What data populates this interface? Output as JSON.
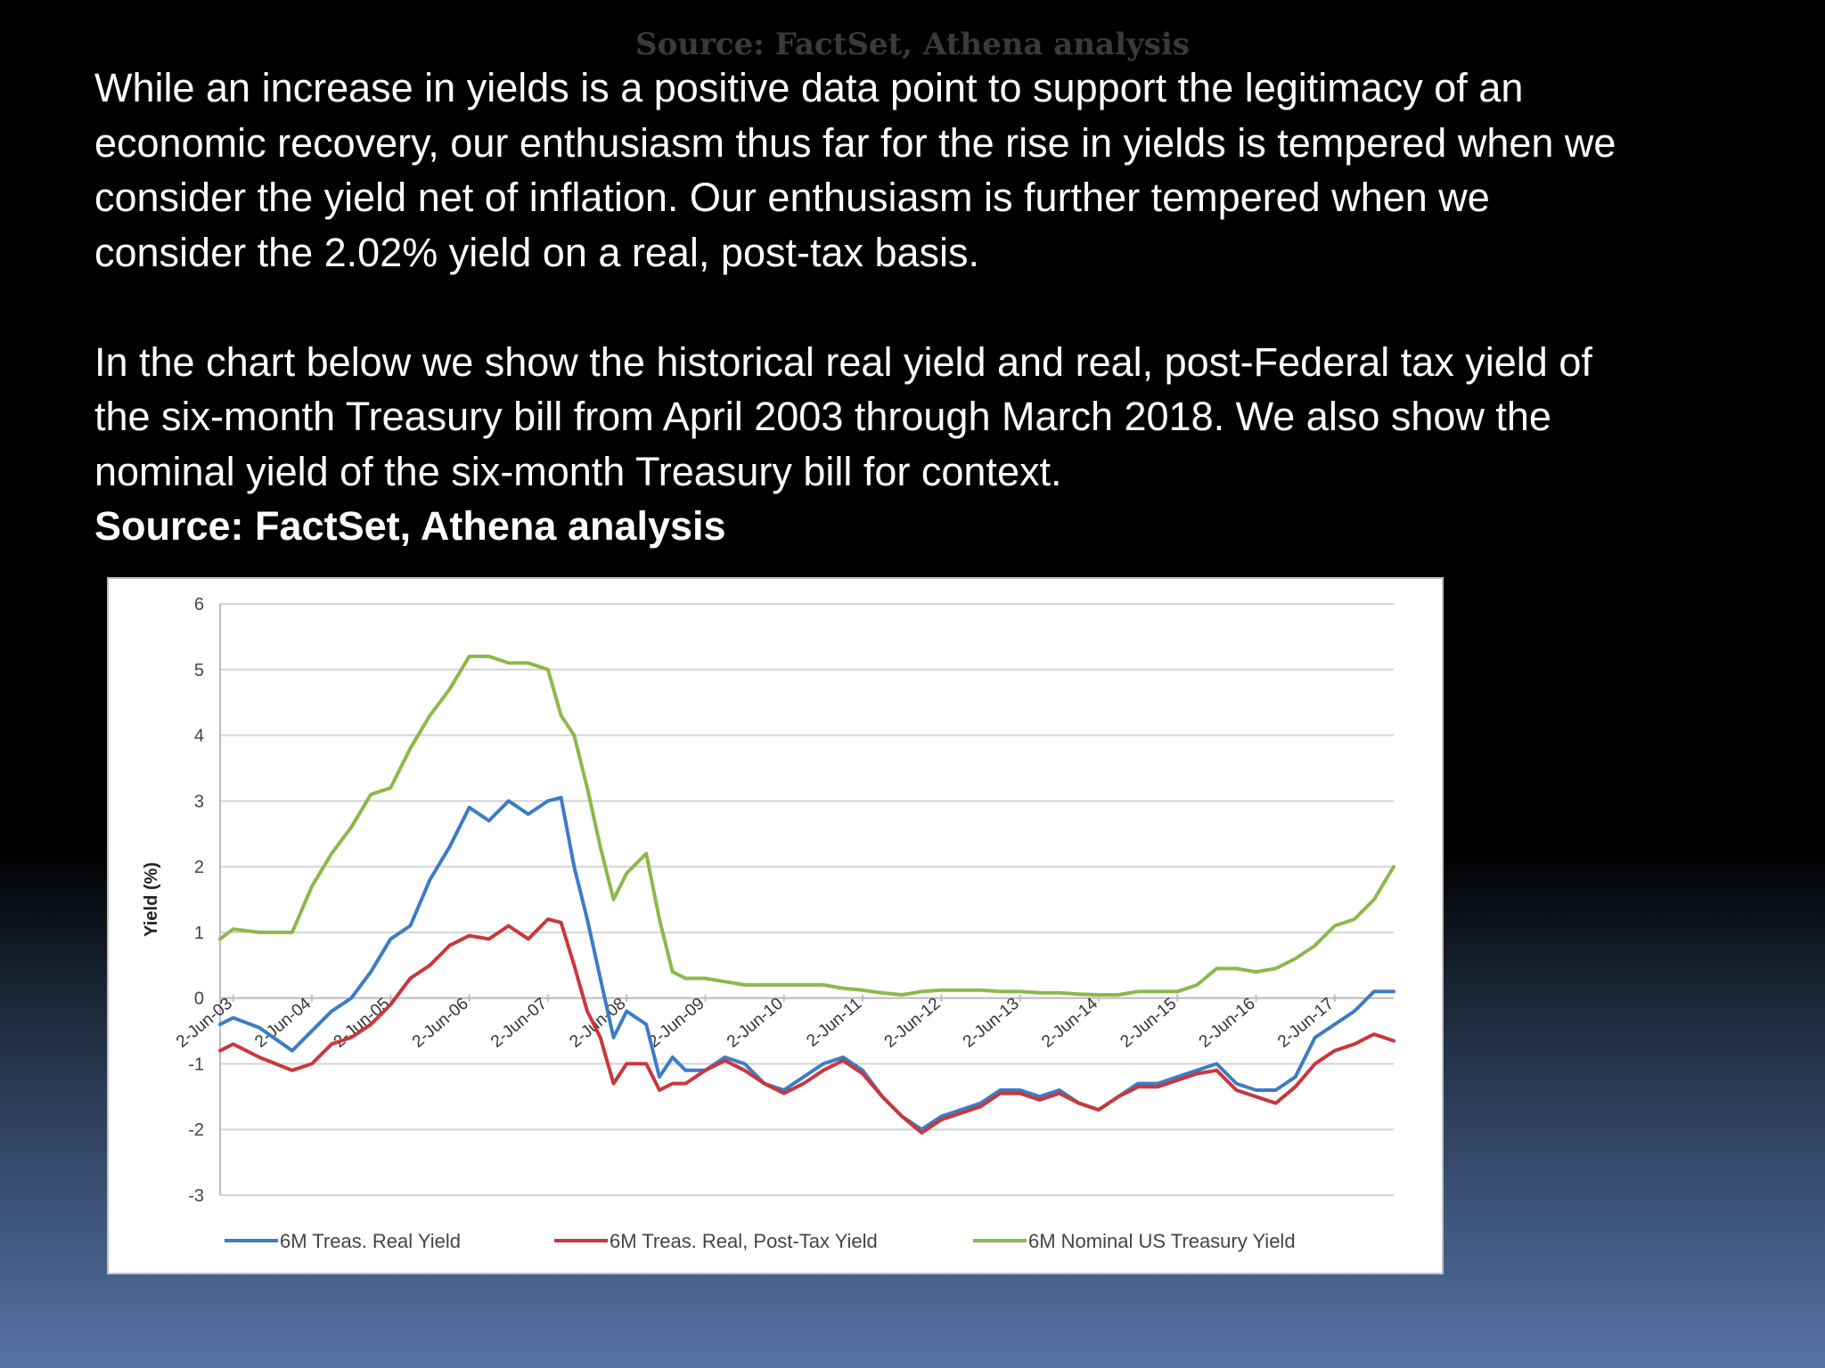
{
  "header": {
    "ghost_title": "Source: FactSet, Athena analysis"
  },
  "text": {
    "paragraph1_lines": [
      "While an increase in yields is a positive data point to support the legitimacy of an",
      "economic recovery, our enthusiasm thus far for the rise in yields is tempered when we",
      "consider the yield net of inflation. Our enthusiasm is further tempered when we",
      "consider the 2.02% yield on a real, post-tax basis."
    ],
    "paragraph2_lines": [
      "In the chart below we show the historical real yield and real, post-Federal tax yield of",
      "the six-month Treasury bill from April 2003 through March 2018. We also show the",
      "nominal yield of the six-month Treasury bill for context."
    ],
    "source": "Source: FactSet, Athena analysis"
  },
  "colors": {
    "real": "#3d7cc4",
    "posttax": "#c9373d",
    "nominal": "#8db84a"
  },
  "chart_data": {
    "type": "line",
    "title": "",
    "xlabel": "",
    "ylabel": "Yield (%)",
    "ylim": [
      -3,
      6
    ],
    "yticks": [
      "6",
      "5",
      "4",
      "3",
      "2",
      "1",
      "0",
      "-1",
      "-2",
      "-3"
    ],
    "grid": true,
    "legend_position": "bottom",
    "x_tick_labels": [
      "2-Jun-03",
      "2-Jun-04",
      "2-Jun-05",
      "2-Jun-06",
      "2-Jun-07",
      "2-Jun-08",
      "2-Jun-09",
      "2-Jun-10",
      "2-Jun-11",
      "2-Jun-12",
      "2-Jun-13",
      "2-Jun-14",
      "2-Jun-15",
      "2-Jun-16",
      "2-Jun-17"
    ],
    "x": [
      "2003-04",
      "2003-06",
      "2003-10",
      "2004-03",
      "2004-06",
      "2004-09",
      "2004-12",
      "2005-03",
      "2005-06",
      "2005-09",
      "2005-12",
      "2006-03",
      "2006-06",
      "2006-09",
      "2006-12",
      "2007-03",
      "2007-06",
      "2007-08",
      "2007-10",
      "2007-12",
      "2008-02",
      "2008-04",
      "2008-06",
      "2008-09",
      "2008-11",
      "2009-01",
      "2009-03",
      "2009-06",
      "2009-09",
      "2009-12",
      "2010-03",
      "2010-06",
      "2010-09",
      "2010-12",
      "2011-03",
      "2011-06",
      "2011-09",
      "2011-12",
      "2012-03",
      "2012-06",
      "2012-09",
      "2012-12",
      "2013-03",
      "2013-06",
      "2013-09",
      "2013-12",
      "2014-03",
      "2014-06",
      "2014-09",
      "2014-12",
      "2015-03",
      "2015-06",
      "2015-09",
      "2015-12",
      "2016-03",
      "2016-06",
      "2016-09",
      "2016-12",
      "2017-03",
      "2017-06",
      "2017-09",
      "2017-12",
      "2018-03"
    ],
    "series": [
      {
        "name": "6M Treas. Real Yield",
        "values": [
          -0.4,
          -0.3,
          -0.45,
          -0.8,
          -0.5,
          -0.2,
          0,
          0.4,
          0.9,
          1.1,
          1.8,
          2.3,
          2.9,
          2.7,
          3.0,
          2.8,
          3.0,
          3.05,
          2.0,
          1.2,
          0.3,
          -0.6,
          -0.2,
          -0.4,
          -1.2,
          -0.9,
          -1.1,
          -1.1,
          -0.9,
          -1.0,
          -1.3,
          -1.4,
          -1.2,
          -1.0,
          -0.9,
          -1.1,
          -1.5,
          -1.8,
          -2.0,
          -1.8,
          -1.7,
          -1.6,
          -1.4,
          -1.4,
          -1.5,
          -1.4,
          -1.6,
          -1.7,
          -1.5,
          -1.3,
          -1.3,
          -1.2,
          -1.1,
          -1.0,
          -1.3,
          -1.4,
          -1.4,
          -1.2,
          -0.6,
          -0.4,
          -0.2,
          0.1,
          0.1
        ]
      },
      {
        "name": "6M Treas. Real, Post-Tax Yield",
        "values": [
          -0.8,
          -0.7,
          -0.9,
          -1.1,
          -1.0,
          -0.7,
          -0.6,
          -0.4,
          -0.1,
          0.3,
          0.5,
          0.8,
          0.95,
          0.9,
          1.1,
          0.9,
          1.2,
          1.15,
          0.5,
          -0.2,
          -0.6,
          -1.3,
          -1.0,
          -1.0,
          -1.4,
          -1.3,
          -1.3,
          -1.1,
          -0.95,
          -1.1,
          -1.3,
          -1.45,
          -1.3,
          -1.1,
          -0.95,
          -1.15,
          -1.5,
          -1.8,
          -2.05,
          -1.85,
          -1.75,
          -1.65,
          -1.45,
          -1.45,
          -1.55,
          -1.45,
          -1.6,
          -1.7,
          -1.5,
          -1.35,
          -1.35,
          -1.25,
          -1.15,
          -1.1,
          -1.4,
          -1.5,
          -1.6,
          -1.35,
          -1.0,
          -0.8,
          -0.7,
          -0.55,
          -0.65
        ]
      },
      {
        "name": "6M Nominal US Treasury Yield",
        "values": [
          0.9,
          1.05,
          1.0,
          1.0,
          1.7,
          2.2,
          2.6,
          3.1,
          3.2,
          3.8,
          4.3,
          4.7,
          5.2,
          5.2,
          5.1,
          5.1,
          5.0,
          4.3,
          4.0,
          3.2,
          2.3,
          1.5,
          1.9,
          2.2,
          1.2,
          0.4,
          0.3,
          0.3,
          0.25,
          0.2,
          0.2,
          0.2,
          0.2,
          0.2,
          0.15,
          0.12,
          0.08,
          0.05,
          0.1,
          0.12,
          0.12,
          0.12,
          0.1,
          0.1,
          0.08,
          0.08,
          0.06,
          0.05,
          0.05,
          0.1,
          0.1,
          0.1,
          0.2,
          0.45,
          0.45,
          0.4,
          0.45,
          0.6,
          0.8,
          1.1,
          1.2,
          1.5,
          2.0
        ]
      }
    ]
  }
}
